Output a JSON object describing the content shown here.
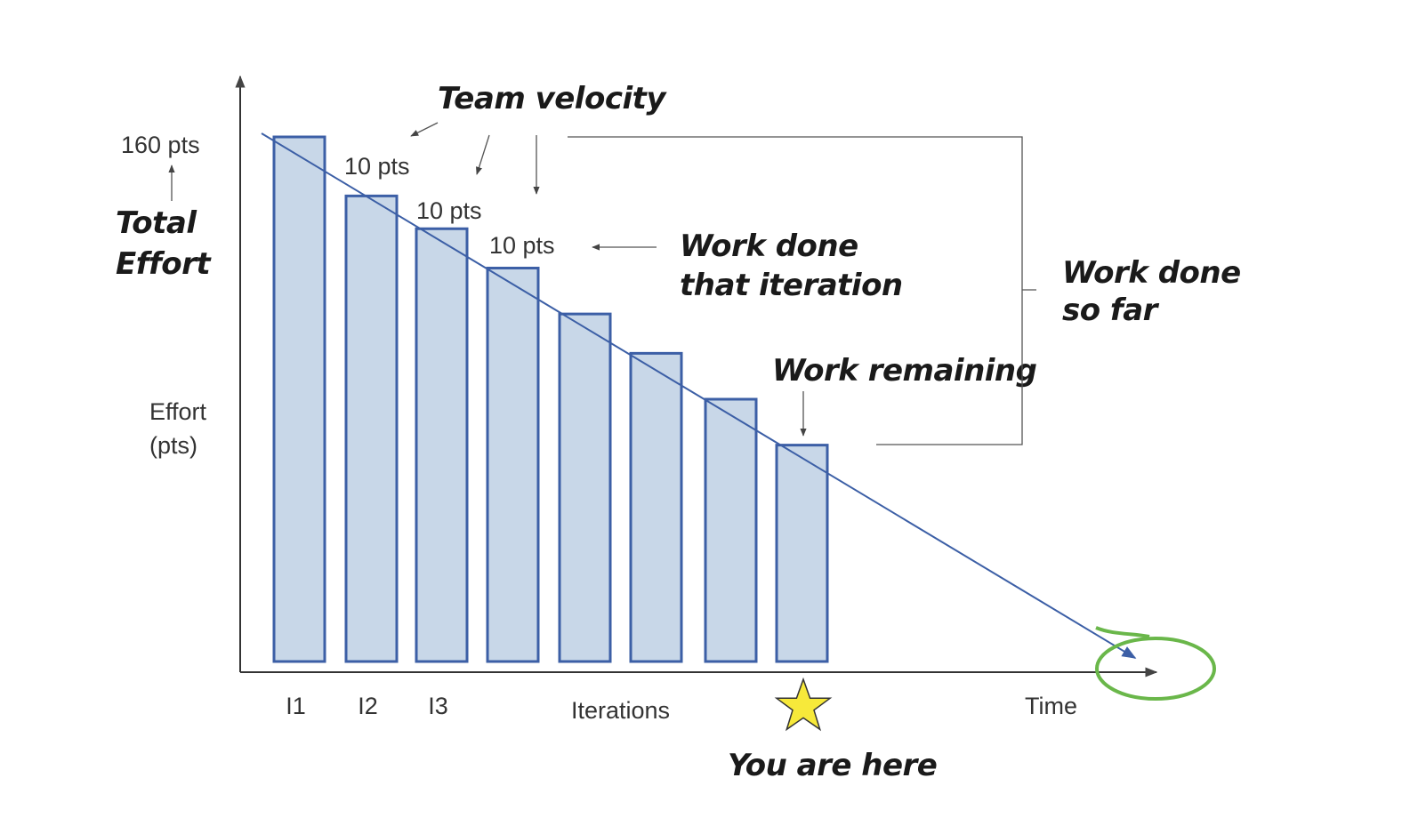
{
  "chart_data": {
    "type": "bar",
    "title": "",
    "ylabel": "Effort\n(pts)",
    "xlabel": "Iterations",
    "x_axis_end_label": "Time",
    "ylim": [
      0,
      160
    ],
    "categories": [
      "I1",
      "I2",
      "I3",
      "",
      "",
      "",
      "",
      ""
    ],
    "values": [
      160,
      142,
      132,
      120,
      106,
      94,
      80,
      66
    ],
    "trend_line": {
      "from_value": 160,
      "to_value": 0,
      "meaning": "burndown projection"
    },
    "grid": false,
    "legend": "none",
    "labels": {
      "total": "160 pts",
      "total_note": "Total\nEffort",
      "velocity": [
        "10 pts",
        "10 pts",
        "10 pts"
      ],
      "velocity_note": "Team velocity",
      "work_done_iteration": "Work done\nthat iteration",
      "work_done_so_far": "Work done\nso far",
      "work_remaining": "Work remaining",
      "you_are_here": "You are here"
    },
    "colors": {
      "bar_fill": "#c8d7e8",
      "bar_stroke": "#3c5fa6",
      "trend": "#3c5fa6",
      "axis": "#333333",
      "star": "#f7e93a",
      "circle": "#6ab74a"
    }
  }
}
